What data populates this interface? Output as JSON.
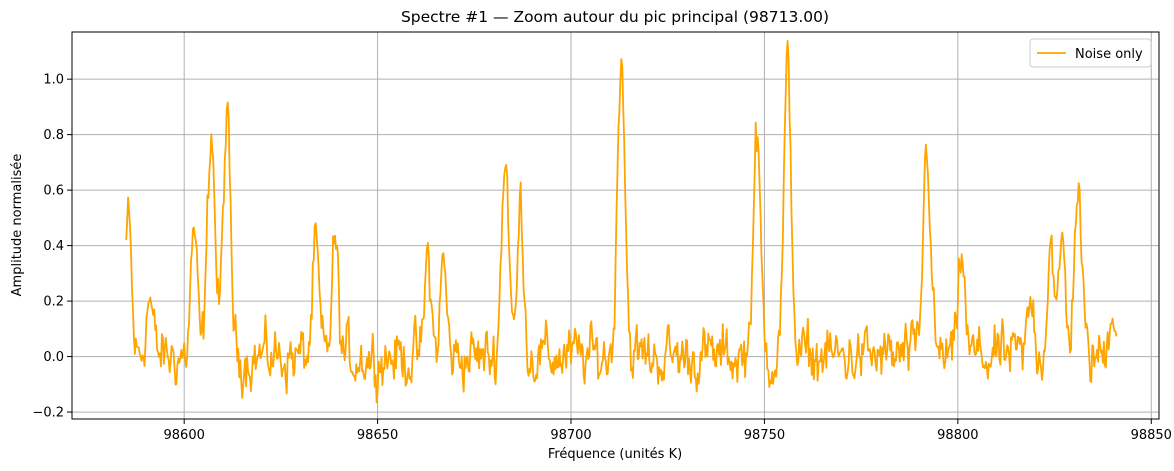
{
  "chart_data": {
    "type": "line",
    "title": "Spectre #1 — Zoom autour du pic principal (98713.00)",
    "xlabel": "Fréquence (unités K)",
    "ylabel": "Amplitude normalisée",
    "xlim": [
      98571,
      98852
    ],
    "ylim": [
      -0.225,
      1.17
    ],
    "x_ticks": [
      98600,
      98650,
      98700,
      98750,
      98800,
      98850
    ],
    "y_ticks": [
      -0.2,
      0.0,
      0.2,
      0.4,
      0.6,
      0.8,
      1.0
    ],
    "y_tick_labels": [
      "−0.2",
      "0.0",
      "0.2",
      "0.4",
      "0.6",
      "0.8",
      "1.0"
    ],
    "grid": true,
    "legend_position": "top-right",
    "series": [
      {
        "name": "Noise only",
        "color": "#FFA500",
        "x_range": [
          98585,
          98841
        ],
        "start_value": 0.47,
        "peaks": [
          {
            "x": 98585.5,
            "y": 0.5
          },
          {
            "x": 98591,
            "y": 0.21
          },
          {
            "x": 98602.5,
            "y": 0.46
          },
          {
            "x": 98607,
            "y": 0.83
          },
          {
            "x": 98611,
            "y": 0.84
          },
          {
            "x": 98634,
            "y": 0.39
          },
          {
            "x": 98639,
            "y": 0.42
          },
          {
            "x": 98663,
            "y": 0.36
          },
          {
            "x": 98667,
            "y": 0.34
          },
          {
            "x": 98683,
            "y": 0.73
          },
          {
            "x": 98687,
            "y": 0.55
          },
          {
            "x": 98713,
            "y": 1.12
          },
          {
            "x": 98748,
            "y": 0.77
          },
          {
            "x": 98756,
            "y": 1.02
          },
          {
            "x": 98792,
            "y": 0.76
          },
          {
            "x": 98801,
            "y": 0.38
          },
          {
            "x": 98819,
            "y": 0.19
          },
          {
            "x": 98824,
            "y": 0.44
          },
          {
            "x": 98827,
            "y": 0.41
          },
          {
            "x": 98831,
            "y": 0.61
          },
          {
            "x": 98840,
            "y": 0.2
          }
        ]
      }
    ]
  }
}
